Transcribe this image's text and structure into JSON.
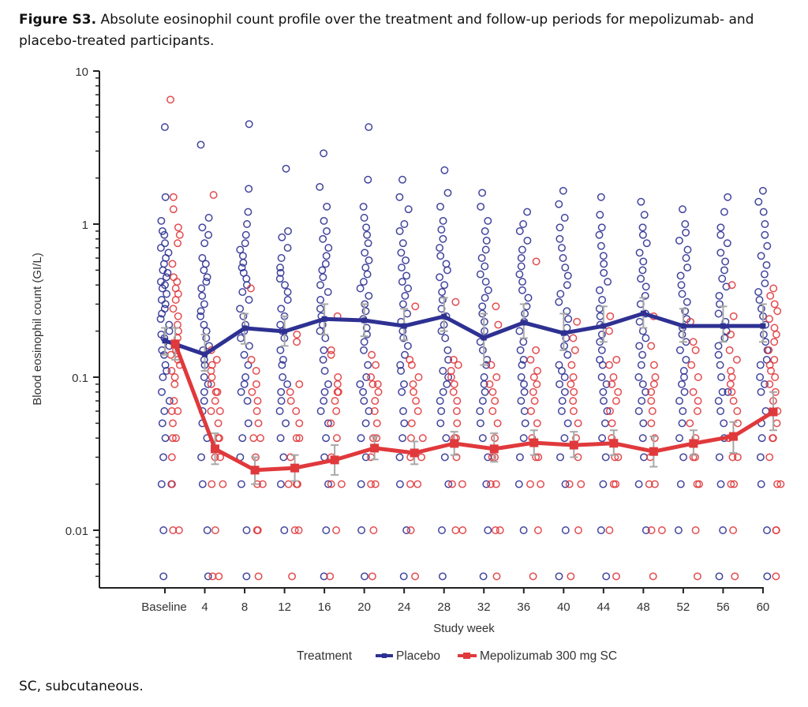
{
  "caption": {
    "label": "Figure S3.",
    "text": " Absolute eosinophil count profile over the treatment and follow-up periods for mepolizumab- and placebo-treated participants."
  },
  "footnote": "SC, subcutaneous.",
  "chart_data": {
    "type": "line",
    "scale_y": "log",
    "xlabel": "Study week",
    "ylabel": "Blood eosinophil count (GI/L)",
    "ylim": [
      0.0042,
      10
    ],
    "y_major_ticks": [
      {
        "value": 10,
        "label": "10"
      },
      {
        "value": 1,
        "label": "1"
      },
      {
        "value": 0.1,
        "label": "0.1"
      },
      {
        "value": 0.01,
        "label": "0.01"
      }
    ],
    "categories": [
      "Baseline",
      "4",
      "8",
      "12",
      "16",
      "20",
      "24",
      "28",
      "32",
      "36",
      "40",
      "44",
      "48",
      "52",
      "56",
      "60"
    ],
    "legend": {
      "title": "Treatment",
      "position": "bottom",
      "entries": [
        "Placebo",
        "Mepolizumab 300 mg SC"
      ]
    },
    "grid": false,
    "series": [
      {
        "name": "Placebo",
        "color": "#2e3192",
        "mean": [
          0.173,
          0.141,
          0.209,
          0.199,
          0.24,
          0.235,
          0.216,
          0.249,
          0.181,
          0.227,
          0.194,
          0.216,
          0.261,
          0.216,
          0.216,
          0.216
        ],
        "ci_low": [
          0.14,
          0.11,
          0.165,
          0.16,
          0.19,
          0.185,
          0.175,
          0.2,
          0.12,
          0.18,
          0.15,
          0.17,
          0.21,
          0.17,
          0.17,
          0.17
        ],
        "ci_high": [
          0.21,
          0.19,
          0.26,
          0.25,
          0.3,
          0.3,
          0.28,
          0.33,
          0.26,
          0.3,
          0.26,
          0.29,
          0.33,
          0.28,
          0.29,
          0.3
        ],
        "points": [
          [
            4.3,
            1.5,
            1.05,
            0.9,
            0.85,
            0.75,
            0.7,
            0.65,
            0.6,
            0.55,
            0.5,
            0.48,
            0.45,
            0.42,
            0.4,
            0.38,
            0.35,
            0.32,
            0.3,
            0.28,
            0.26,
            0.24,
            0.22,
            0.2,
            0.19,
            0.18,
            0.16,
            0.15,
            0.14,
            0.12,
            0.11,
            0.1,
            0.08,
            0.07,
            0.06,
            0.05,
            0.04,
            0.03,
            0.02,
            0.02,
            0.01,
            0.005
          ],
          [
            3.3,
            1.1,
            0.95,
            0.85,
            0.75,
            0.6,
            0.55,
            0.5,
            0.45,
            0.42,
            0.38,
            0.34,
            0.3,
            0.27,
            0.25,
            0.22,
            0.2,
            0.18,
            0.16,
            0.15,
            0.13,
            0.12,
            0.1,
            0.09,
            0.08,
            0.07,
            0.06,
            0.05,
            0.04,
            0.03,
            0.02,
            0.01,
            0.005
          ],
          [
            4.5,
            1.7,
            1.2,
            1.0,
            0.85,
            0.75,
            0.68,
            0.62,
            0.56,
            0.52,
            0.48,
            0.44,
            0.4,
            0.36,
            0.32,
            0.28,
            0.25,
            0.22,
            0.2,
            0.18,
            0.16,
            0.14,
            0.12,
            0.1,
            0.09,
            0.08,
            0.07,
            0.05,
            0.04,
            0.03,
            0.02,
            0.01,
            0.005
          ],
          [
            2.3,
            0.9,
            0.82,
            0.7,
            0.6,
            0.52,
            0.48,
            0.44,
            0.4,
            0.36,
            0.32,
            0.28,
            0.25,
            0.22,
            0.2,
            0.18,
            0.15,
            0.13,
            0.12,
            0.1,
            0.09,
            0.08,
            0.07,
            0.06,
            0.05,
            0.04,
            0.03,
            0.02,
            0.01
          ],
          [
            2.9,
            1.75,
            1.3,
            1.05,
            0.9,
            0.8,
            0.7,
            0.62,
            0.55,
            0.5,
            0.45,
            0.4,
            0.36,
            0.32,
            0.28,
            0.25,
            0.22,
            0.2,
            0.18,
            0.15,
            0.13,
            0.11,
            0.09,
            0.08,
            0.07,
            0.06,
            0.05,
            0.04,
            0.03,
            0.02,
            0.01,
            0.005
          ],
          [
            4.3,
            1.95,
            1.3,
            1.1,
            0.95,
            0.85,
            0.75,
            0.65,
            0.58,
            0.52,
            0.47,
            0.42,
            0.38,
            0.34,
            0.3,
            0.27,
            0.24,
            0.21,
            0.19,
            0.17,
            0.15,
            0.12,
            0.1,
            0.09,
            0.08,
            0.07,
            0.06,
            0.05,
            0.04,
            0.03,
            0.02,
            0.01,
            0.005
          ],
          [
            1.95,
            1.5,
            1.25,
            1.0,
            0.9,
            0.75,
            0.65,
            0.58,
            0.52,
            0.46,
            0.42,
            0.38,
            0.34,
            0.3,
            0.26,
            0.23,
            0.2,
            0.18,
            0.16,
            0.14,
            0.12,
            0.11,
            0.09,
            0.08,
            0.06,
            0.05,
            0.04,
            0.03,
            0.02,
            0.01,
            0.005
          ],
          [
            2.25,
            1.6,
            1.3,
            1.05,
            0.92,
            0.8,
            0.7,
            0.62,
            0.55,
            0.5,
            0.45,
            0.4,
            0.36,
            0.32,
            0.28,
            0.25,
            0.22,
            0.2,
            0.18,
            0.15,
            0.13,
            0.11,
            0.1,
            0.09,
            0.08,
            0.07,
            0.06,
            0.05,
            0.04,
            0.03,
            0.02,
            0.01,
            0.005
          ],
          [
            1.6,
            1.3,
            1.05,
            0.9,
            0.78,
            0.68,
            0.6,
            0.53,
            0.47,
            0.42,
            0.37,
            0.33,
            0.29,
            0.26,
            0.23,
            0.2,
            0.17,
            0.15,
            0.13,
            0.12,
            0.1,
            0.09,
            0.08,
            0.07,
            0.06,
            0.05,
            0.04,
            0.03,
            0.02,
            0.01,
            0.005
          ],
          [
            1.2,
            1.0,
            0.9,
            0.78,
            0.68,
            0.6,
            0.53,
            0.47,
            0.42,
            0.37,
            0.33,
            0.29,
            0.26,
            0.23,
            0.2,
            0.17,
            0.15,
            0.13,
            0.12,
            0.1,
            0.09,
            0.08,
            0.07,
            0.06,
            0.05,
            0.04,
            0.03,
            0.02,
            0.01
          ],
          [
            1.65,
            1.35,
            1.1,
            0.95,
            0.8,
            0.7,
            0.6,
            0.52,
            0.46,
            0.4,
            0.35,
            0.31,
            0.27,
            0.24,
            0.21,
            0.18,
            0.16,
            0.14,
            0.12,
            0.11,
            0.1,
            0.09,
            0.08,
            0.07,
            0.06,
            0.05,
            0.04,
            0.03,
            0.02,
            0.01,
            0.005
          ],
          [
            1.5,
            1.15,
            0.95,
            0.85,
            0.72,
            0.62,
            0.55,
            0.48,
            0.42,
            0.37,
            0.32,
            0.28,
            0.25,
            0.22,
            0.19,
            0.17,
            0.15,
            0.13,
            0.12,
            0.1,
            0.09,
            0.08,
            0.07,
            0.06,
            0.05,
            0.04,
            0.03,
            0.02,
            0.01,
            0.005
          ],
          [
            1.4,
            1.15,
            0.95,
            0.85,
            0.75,
            0.65,
            0.57,
            0.5,
            0.44,
            0.39,
            0.34,
            0.3,
            0.26,
            0.23,
            0.2,
            0.18,
            0.16,
            0.14,
            0.12,
            0.1,
            0.09,
            0.08,
            0.07,
            0.06,
            0.05,
            0.04,
            0.03,
            0.02,
            0.01
          ],
          [
            1.25,
            1.0,
            0.88,
            0.78,
            0.68,
            0.6,
            0.52,
            0.46,
            0.4,
            0.35,
            0.31,
            0.27,
            0.24,
            0.21,
            0.19,
            0.17,
            0.15,
            0.13,
            0.11,
            0.1,
            0.09,
            0.08,
            0.07,
            0.06,
            0.05,
            0.04,
            0.03,
            0.02,
            0.01
          ],
          [
            1.5,
            1.2,
            0.95,
            0.85,
            0.75,
            0.65,
            0.57,
            0.5,
            0.44,
            0.39,
            0.34,
            0.3,
            0.26,
            0.23,
            0.2,
            0.18,
            0.16,
            0.14,
            0.12,
            0.1,
            0.08,
            0.08,
            0.07,
            0.06,
            0.05,
            0.04,
            0.03,
            0.02,
            0.01,
            0.005
          ],
          [
            1.65,
            1.4,
            1.2,
            1.0,
            0.85,
            0.72,
            0.62,
            0.54,
            0.47,
            0.41,
            0.36,
            0.32,
            0.28,
            0.25,
            0.22,
            0.19,
            0.17,
            0.15,
            0.13,
            0.12,
            0.1,
            0.09,
            0.08,
            0.06,
            0.05,
            0.04,
            0.03,
            0.02,
            0.01,
            0.005
          ]
        ]
      },
      {
        "name": "Mepolizumab 300 mg SC",
        "color": "#e0393c",
        "mean": [
          0.165,
          0.034,
          0.0247,
          0.0255,
          0.0288,
          0.0344,
          0.032,
          0.0369,
          0.034,
          0.0373,
          0.036,
          0.037,
          0.0327,
          0.0369,
          0.041,
          0.0593
        ],
        "ci_low": [
          0.13,
          0.027,
          0.02,
          0.021,
          0.023,
          0.029,
          0.027,
          0.031,
          0.028,
          0.031,
          0.03,
          0.031,
          0.026,
          0.031,
          0.032,
          0.045
        ],
        "ci_high": [
          0.21,
          0.043,
          0.03,
          0.031,
          0.036,
          0.041,
          0.038,
          0.044,
          0.043,
          0.045,
          0.044,
          0.045,
          0.041,
          0.045,
          0.051,
          0.08
        ],
        "points": [
          [
            6.5,
            1.5,
            1.25,
            0.95,
            0.85,
            0.75,
            0.55,
            0.45,
            0.42,
            0.38,
            0.35,
            0.32,
            0.28,
            0.25,
            0.22,
            0.2,
            0.18,
            0.16,
            0.15,
            0.14,
            0.13,
            0.12,
            0.11,
            0.1,
            0.09,
            0.07,
            0.06,
            0.06,
            0.05,
            0.04,
            0.04,
            0.03,
            0.02,
            0.01,
            0.01
          ],
          [
            1.55,
            0.15,
            0.13,
            0.12,
            0.11,
            0.1,
            0.09,
            0.08,
            0.08,
            0.07,
            0.06,
            0.06,
            0.05,
            0.04,
            0.04,
            0.03,
            0.03,
            0.02,
            0.02,
            0.01,
            0.005,
            0.005
          ],
          [
            0.38,
            0.13,
            0.11,
            0.09,
            0.08,
            0.07,
            0.06,
            0.05,
            0.04,
            0.04,
            0.03,
            0.02,
            0.02,
            0.01,
            0.01,
            0.005
          ],
          [
            0.19,
            0.17,
            0.09,
            0.08,
            0.07,
            0.06,
            0.05,
            0.04,
            0.04,
            0.03,
            0.02,
            0.02,
            0.02,
            0.01,
            0.01,
            0.005
          ],
          [
            0.25,
            0.15,
            0.14,
            0.1,
            0.09,
            0.08,
            0.08,
            0.07,
            0.06,
            0.05,
            0.04,
            0.03,
            0.02,
            0.02,
            0.01,
            0.005
          ],
          [
            0.14,
            0.12,
            0.1,
            0.09,
            0.09,
            0.08,
            0.07,
            0.06,
            0.05,
            0.04,
            0.04,
            0.03,
            0.02,
            0.02,
            0.01,
            0.005
          ],
          [
            0.29,
            0.13,
            0.12,
            0.1,
            0.09,
            0.08,
            0.07,
            0.06,
            0.05,
            0.04,
            0.04,
            0.03,
            0.03,
            0.02,
            0.02,
            0.01,
            0.005
          ],
          [
            0.31,
            0.13,
            0.12,
            0.11,
            0.1,
            0.09,
            0.08,
            0.07,
            0.06,
            0.05,
            0.04,
            0.04,
            0.03,
            0.02,
            0.02,
            0.01,
            0.01
          ],
          [
            0.29,
            0.22,
            0.12,
            0.1,
            0.09,
            0.08,
            0.07,
            0.06,
            0.05,
            0.04,
            0.03,
            0.03,
            0.02,
            0.02,
            0.01,
            0.01,
            0.005
          ],
          [
            0.57,
            0.15,
            0.13,
            0.11,
            0.1,
            0.09,
            0.08,
            0.07,
            0.06,
            0.05,
            0.04,
            0.03,
            0.03,
            0.02,
            0.02,
            0.01,
            0.005
          ],
          [
            0.23,
            0.18,
            0.15,
            0.12,
            0.1,
            0.09,
            0.08,
            0.07,
            0.06,
            0.05,
            0.04,
            0.03,
            0.02,
            0.02,
            0.01,
            0.005
          ],
          [
            0.25,
            0.2,
            0.13,
            0.12,
            0.1,
            0.09,
            0.08,
            0.07,
            0.06,
            0.05,
            0.04,
            0.03,
            0.03,
            0.02,
            0.02,
            0.01,
            0.005
          ],
          [
            0.25,
            0.16,
            0.12,
            0.1,
            0.09,
            0.08,
            0.07,
            0.06,
            0.05,
            0.04,
            0.03,
            0.02,
            0.02,
            0.01,
            0.01,
            0.005
          ],
          [
            0.23,
            0.17,
            0.15,
            0.12,
            0.1,
            0.08,
            0.07,
            0.06,
            0.05,
            0.04,
            0.03,
            0.03,
            0.02,
            0.02,
            0.01,
            0.005
          ],
          [
            0.4,
            0.25,
            0.19,
            0.15,
            0.13,
            0.11,
            0.1,
            0.09,
            0.08,
            0.07,
            0.06,
            0.05,
            0.04,
            0.03,
            0.03,
            0.02,
            0.02,
            0.01,
            0.005
          ],
          [
            0.38,
            0.34,
            0.3,
            0.27,
            0.24,
            0.21,
            0.19,
            0.17,
            0.15,
            0.13,
            0.12,
            0.11,
            0.1,
            0.09,
            0.08,
            0.07,
            0.06,
            0.05,
            0.04,
            0.04,
            0.03,
            0.02,
            0.02,
            0.01,
            0.01,
            0.005
          ]
        ]
      }
    ]
  }
}
